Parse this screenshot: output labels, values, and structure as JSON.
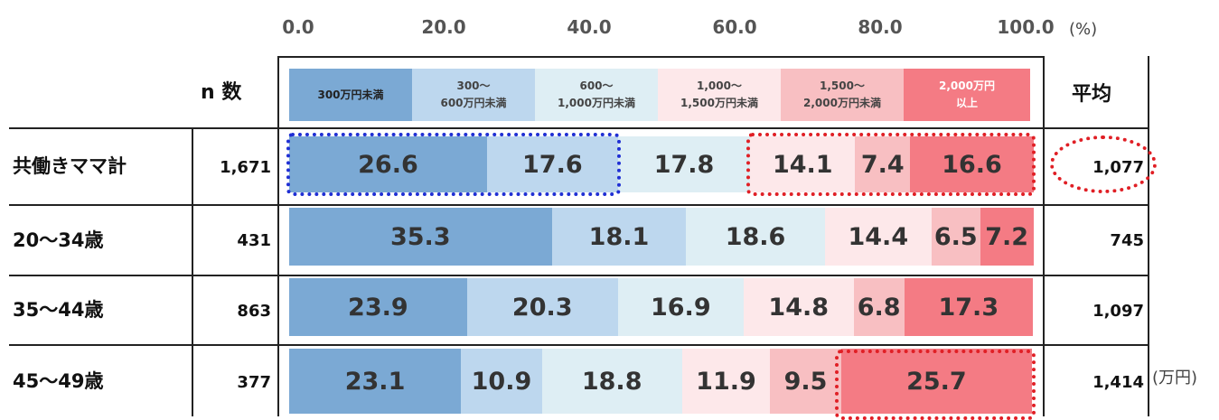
{
  "colors": [
    "#7ba9d4",
    "#bdd7ee",
    "#deeef4",
    "#fde8ea",
    "#f8bfc2",
    "#f47b84"
  ],
  "axis": {
    "ticks": [
      "0.0",
      "20.0",
      "40.0",
      "60.0",
      "80.0",
      "100.0"
    ],
    "unit": "(%)"
  },
  "table": {
    "n_header": "n 数",
    "avg_header": "平均",
    "avg_unit": "(万円)"
  },
  "legend": [
    "300万円未満",
    "300～\n600万円未満",
    "600～\n1,000万円未満",
    "1,000～\n1,500万円未満",
    "1,500～\n2,000万円未満",
    "2,000万円\n以上"
  ],
  "rows": [
    {
      "label": "共働きママ計",
      "n": "1,671",
      "avg": "1,077"
    },
    {
      "label": "20～34歳",
      "n": "431",
      "avg": "745"
    },
    {
      "label": "35～44歳",
      "n": "863",
      "avg": "1,097"
    },
    {
      "label": "45～49歳",
      "n": "377",
      "avg": "1,414"
    }
  ],
  "chart_data": {
    "type": "bar",
    "categories": [
      "共働きママ計",
      "20～34歳",
      "35～44歳",
      "45～49歳"
    ],
    "series": [
      {
        "name": "300万円未満",
        "values": [
          26.6,
          35.3,
          23.9,
          23.1
        ]
      },
      {
        "name": "300～600万円未満",
        "values": [
          17.6,
          18.1,
          20.3,
          10.9
        ]
      },
      {
        "name": "600～1,000万円未満",
        "values": [
          17.8,
          18.6,
          16.9,
          18.8
        ]
      },
      {
        "name": "1,000～1,500万円未満",
        "values": [
          14.1,
          14.4,
          14.8,
          11.9
        ]
      },
      {
        "name": "1,500～2,000万円未満",
        "values": [
          7.4,
          6.5,
          6.8,
          9.5
        ]
      },
      {
        "name": "2,000万円以上",
        "values": [
          16.6,
          7.2,
          17.3,
          25.7
        ]
      }
    ],
    "stacked": true,
    "orientation": "horizontal",
    "xlim": [
      0,
      100
    ],
    "xunit": "(%)"
  }
}
